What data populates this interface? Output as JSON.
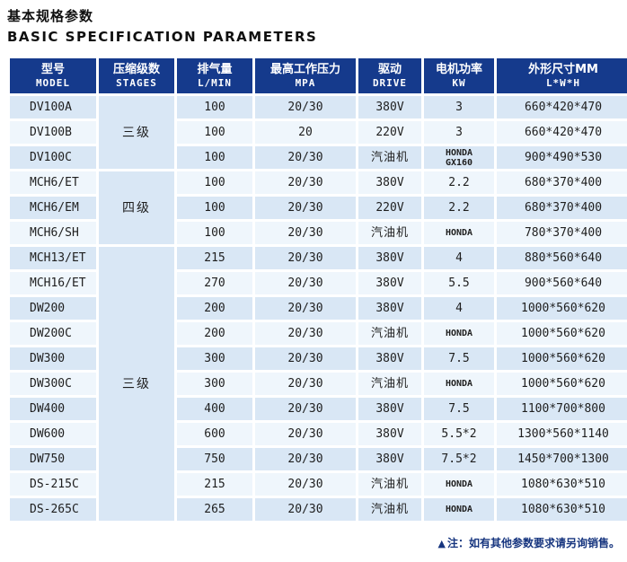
{
  "page": {
    "title_zh": "基本规格参数",
    "title_en": "BASIC SPECIFICATION PARAMETERS"
  },
  "note": {
    "icon": "▲",
    "text": "注：如有其他参数要求请另询销售。"
  },
  "colors": {
    "header_bg": "#153a8c",
    "header_text": "#ffffff",
    "row_blue": "#d9e7f5",
    "row_white": "#eff6fc",
    "note_text": "#16357f",
    "body_text": "#1e1e1e"
  },
  "table": {
    "columns": [
      {
        "zh": "型号",
        "en": "MODEL"
      },
      {
        "zh": "压缩级数",
        "en": "STAGES"
      },
      {
        "zh": "排气量",
        "en": "L/MIN"
      },
      {
        "zh": "最高工作压力",
        "en": "MPA"
      },
      {
        "zh": "驱动",
        "en": "DRIVE"
      },
      {
        "zh": "电机功率",
        "en": "KW"
      },
      {
        "zh": "外形尺寸MM",
        "en": "L*W*H"
      }
    ],
    "stage_groups": [
      {
        "label": "三级",
        "rows": 3
      },
      {
        "label": "四级",
        "rows": 3
      },
      {
        "label": "三级",
        "rows": 11
      }
    ],
    "rows": [
      {
        "model": "DV100A",
        "lmin": "100",
        "mpa": "20/30",
        "drive": "380V",
        "kw": "3",
        "dim": "660*420*470"
      },
      {
        "model": "DV100B",
        "lmin": "100",
        "mpa": "20",
        "drive": "220V",
        "kw": "3",
        "dim": "660*420*470"
      },
      {
        "model": "DV100C",
        "lmin": "100",
        "mpa": "20/30",
        "drive": "汽油机",
        "kw": "HONDA\nGX160",
        "dim": "900*490*530"
      },
      {
        "model": "MCH6/ET",
        "lmin": "100",
        "mpa": "20/30",
        "drive": "380V",
        "kw": "2.2",
        "dim": "680*370*400"
      },
      {
        "model": "MCH6/EM",
        "lmin": "100",
        "mpa": "20/30",
        "drive": "220V",
        "kw": "2.2",
        "dim": "680*370*400"
      },
      {
        "model": "MCH6/SH",
        "lmin": "100",
        "mpa": "20/30",
        "drive": "汽油机",
        "kw": "HONDA",
        "dim": "780*370*400"
      },
      {
        "model": "MCH13/ET",
        "lmin": "215",
        "mpa": "20/30",
        "drive": "380V",
        "kw": "4",
        "dim": "880*560*640"
      },
      {
        "model": "MCH16/ET",
        "lmin": "270",
        "mpa": "20/30",
        "drive": "380V",
        "kw": "5.5",
        "dim": "900*560*640"
      },
      {
        "model": "DW200",
        "lmin": "200",
        "mpa": "20/30",
        "drive": "380V",
        "kw": "4",
        "dim": "1000*560*620"
      },
      {
        "model": "DW200C",
        "lmin": "200",
        "mpa": "20/30",
        "drive": "汽油机",
        "kw": "HONDA",
        "dim": "1000*560*620"
      },
      {
        "model": "DW300",
        "lmin": "300",
        "mpa": "20/30",
        "drive": "380V",
        "kw": "7.5",
        "dim": "1000*560*620"
      },
      {
        "model": "DW300C",
        "lmin": "300",
        "mpa": "20/30",
        "drive": "汽油机",
        "kw": "HONDA",
        "dim": "1000*560*620"
      },
      {
        "model": "DW400",
        "lmin": "400",
        "mpa": "20/30",
        "drive": "380V",
        "kw": "7.5",
        "dim": "1100*700*800"
      },
      {
        "model": "DW600",
        "lmin": "600",
        "mpa": "20/30",
        "drive": "380V",
        "kw": "5.5*2",
        "dim": "1300*560*1140"
      },
      {
        "model": "DW750",
        "lmin": "750",
        "mpa": "20/30",
        "drive": "380V",
        "kw": "7.5*2",
        "dim": "1450*700*1300"
      },
      {
        "model": "DS-215C",
        "lmin": "215",
        "mpa": "20/30",
        "drive": "汽油机",
        "kw": "HONDA",
        "dim": "1080*630*510"
      },
      {
        "model": "DS-265C",
        "lmin": "265",
        "mpa": "20/30",
        "drive": "汽油机",
        "kw": "HONDA",
        "dim": "1080*630*510"
      }
    ]
  }
}
